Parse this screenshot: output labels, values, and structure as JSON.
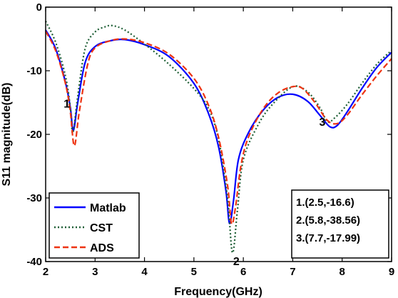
{
  "chart_data": {
    "type": "line",
    "xlabel": "Frequency(GHz)",
    "ylabel": "S11 magnitude(dB)",
    "xlim": [
      2,
      9
    ],
    "ylim": [
      -40,
      0
    ],
    "xticks": [
      "2",
      "3",
      "4",
      "5",
      "6",
      "7",
      "8",
      "9"
    ],
    "yticks": [
      "0",
      "-10",
      "-20",
      "-30",
      "-40"
    ],
    "grid": false,
    "legend_position": "bottom-left",
    "series": [
      {
        "name": "Matlab",
        "color": "#0000ff",
        "style": "solid",
        "x": [
          2.0,
          2.2,
          2.4,
          2.5,
          2.56,
          2.65,
          2.8,
          3.0,
          3.3,
          3.6,
          4.0,
          4.5,
          5.0,
          5.3,
          5.5,
          5.65,
          5.72,
          5.8,
          5.9,
          6.1,
          6.4,
          6.7,
          7.0,
          7.3,
          7.55,
          7.75,
          7.9,
          8.1,
          8.4,
          8.7,
          9.0
        ],
        "y": [
          -3.6,
          -6.5,
          -11.8,
          -15.8,
          -19.4,
          -15.0,
          -8.7,
          -6.2,
          -5.3,
          -5.1,
          -5.9,
          -7.8,
          -12.0,
          -16.8,
          -22.0,
          -29.0,
          -34.0,
          -30.5,
          -24.0,
          -19.8,
          -16.2,
          -14.2,
          -13.7,
          -14.8,
          -17.0,
          -18.8,
          -18.6,
          -16.5,
          -12.8,
          -9.5,
          -7.1
        ]
      },
      {
        "name": "CST",
        "color": "#1f5f36",
        "style": "dotted",
        "x": [
          2.0,
          2.2,
          2.4,
          2.5,
          2.55,
          2.65,
          2.8,
          3.0,
          3.2,
          3.35,
          3.6,
          4.0,
          4.5,
          5.0,
          5.3,
          5.5,
          5.68,
          5.78,
          5.88,
          6.0,
          6.3,
          6.6,
          7.0,
          7.3,
          7.55,
          7.7,
          7.85,
          8.1,
          8.4,
          8.7,
          9.0
        ],
        "y": [
          -2.2,
          -5.5,
          -10.8,
          -15.8,
          -19.8,
          -14.0,
          -6.5,
          -3.9,
          -3.1,
          -2.9,
          -3.6,
          -5.8,
          -9.0,
          -12.8,
          -16.0,
          -20.8,
          -30.0,
          -38.6,
          -32.0,
          -24.0,
          -18.5,
          -15.2,
          -12.5,
          -13.3,
          -15.8,
          -18.0,
          -17.4,
          -15.3,
          -12.0,
          -9.0,
          -6.8
        ]
      },
      {
        "name": "ADS",
        "color": "#ee3311",
        "style": "dashed",
        "x": [
          2.0,
          2.2,
          2.4,
          2.5,
          2.58,
          2.68,
          2.85,
          3.0,
          3.3,
          3.6,
          4.0,
          4.5,
          5.0,
          5.3,
          5.5,
          5.68,
          5.76,
          5.84,
          5.95,
          6.1,
          6.4,
          6.7,
          7.0,
          7.2,
          7.45,
          7.7,
          7.9,
          8.1,
          8.4,
          8.7,
          9.0
        ],
        "y": [
          -3.8,
          -6.8,
          -12.0,
          -16.5,
          -21.8,
          -16.5,
          -9.0,
          -6.4,
          -5.3,
          -5.0,
          -5.6,
          -7.4,
          -11.2,
          -15.5,
          -20.5,
          -28.0,
          -34.0,
          -31.5,
          -25.0,
          -20.5,
          -16.0,
          -13.5,
          -12.5,
          -12.8,
          -15.0,
          -17.8,
          -18.3,
          -17.0,
          -13.8,
          -10.8,
          -8.1
        ]
      }
    ],
    "markers": [
      {
        "label": "1",
        "x": 2.5,
        "y": -16.6
      },
      {
        "label": "2",
        "x": 5.8,
        "y": -38.56
      },
      {
        "label": "3",
        "x": 7.7,
        "y": -17.99
      }
    ],
    "annotation_lines": [
      "1.(2.5,-16.6)",
      "2.(5.8,-38.56)",
      "3.(7.7,-17.99)"
    ]
  }
}
